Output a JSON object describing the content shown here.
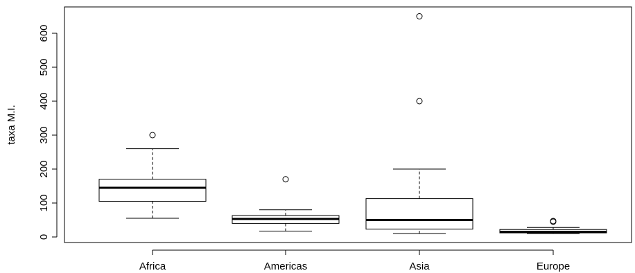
{
  "chart_data": {
    "type": "boxplot",
    "title": "",
    "xlabel": "",
    "ylabel": "taxa M.I.",
    "ylim": [
      -10,
      680
    ],
    "yticks": [
      0,
      100,
      200,
      300,
      400,
      500,
      600
    ],
    "grid": false,
    "categories": [
      "Africa",
      "Americas",
      "Asia",
      "Europe"
    ],
    "boxes": [
      {
        "name": "Africa",
        "whisker_low": 55,
        "q1": 105,
        "median": 145,
        "q3": 170,
        "whisker_high": 260,
        "outliers": [
          300
        ]
      },
      {
        "name": "Americas",
        "whisker_low": 17,
        "q1": 40,
        "median": 53,
        "q3": 63,
        "whisker_high": 80,
        "outliers": [
          170
        ]
      },
      {
        "name": "Asia",
        "whisker_low": 10,
        "q1": 23,
        "median": 50,
        "q3": 113,
        "whisker_high": 200,
        "outliers": [
          400,
          650
        ]
      },
      {
        "name": "Europe",
        "whisker_low": 10,
        "q1": 12,
        "median": 15,
        "q3": 22,
        "whisker_high": 28,
        "outliers": [
          45,
          47
        ]
      }
    ]
  },
  "colors": {
    "box_fill": "#ffffff",
    "stroke": "#000000",
    "background": "#ffffff"
  }
}
